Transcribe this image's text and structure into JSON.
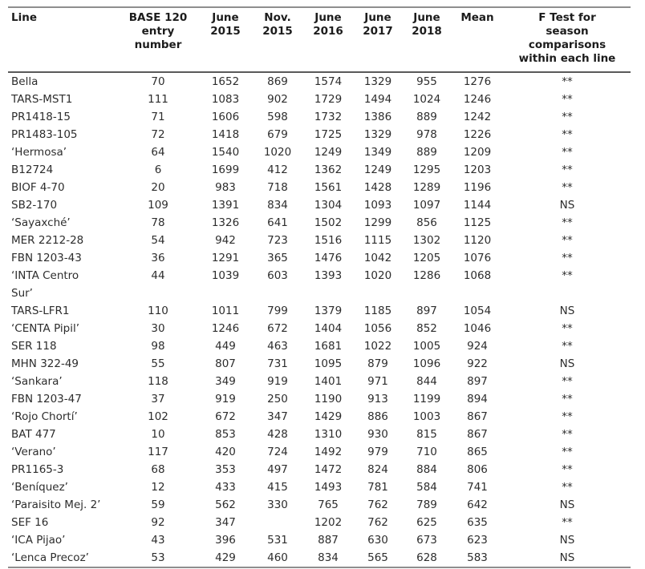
{
  "table": {
    "headers": [
      "Line",
      "BASE 120\nentry\nnumber",
      "June\n2015",
      "Nov.\n2015",
      "June\n2016",
      "June\n2017",
      "June\n2018",
      "Mean",
      "F Test for\nseason\ncomparisons\nwithin each line"
    ],
    "rows": [
      [
        "Bella",
        "70",
        "1652",
        "869",
        "1574",
        "1329",
        "955",
        "1276",
        "**"
      ],
      [
        "TARS-MST1",
        "111",
        "1083",
        "902",
        "1729",
        "1494",
        "1024",
        "1246",
        "**"
      ],
      [
        "PR1418-15",
        "71",
        "1606",
        "598",
        "1732",
        "1386",
        "889",
        "1242",
        "**"
      ],
      [
        "PR1483-105",
        "72",
        "1418",
        "679",
        "1725",
        "1329",
        "978",
        "1226",
        "**"
      ],
      [
        "‘Hermosa’",
        "64",
        "1540",
        "1020",
        "1249",
        "1349",
        "889",
        "1209",
        "**"
      ],
      [
        "B12724",
        "6",
        "1699",
        "412",
        "1362",
        "1249",
        "1295",
        "1203",
        "**"
      ],
      [
        "BIOF 4-70",
        "20",
        "983",
        "718",
        "1561",
        "1428",
        "1289",
        "1196",
        "**"
      ],
      [
        "SB2-170",
        "109",
        "1391",
        "834",
        "1304",
        "1093",
        "1097",
        "1144",
        "NS"
      ],
      [
        "‘Sayaxché’",
        "78",
        "1326",
        "641",
        "1502",
        "1299",
        "856",
        "1125",
        "**"
      ],
      [
        "MER 2212-28",
        "54",
        "942",
        "723",
        "1516",
        "1115",
        "1302",
        "1120",
        "**"
      ],
      [
        "FBN 1203-43",
        "36",
        "1291",
        "365",
        "1476",
        "1042",
        "1205",
        "1076",
        "**"
      ],
      [
        "‘INTA Centro\nSur’",
        "44",
        "1039",
        "603",
        "1393",
        "1020",
        "1286",
        "1068",
        "**"
      ],
      [
        "TARS-LFR1",
        "110",
        "1011",
        "799",
        "1379",
        "1185",
        "897",
        "1054",
        "NS"
      ],
      [
        "‘CENTA Pipil’",
        "30",
        "1246",
        "672",
        "1404",
        "1056",
        "852",
        "1046",
        "**"
      ],
      [
        "SER 118",
        "98",
        "449",
        "463",
        "1681",
        "1022",
        "1005",
        "924",
        "**"
      ],
      [
        "MHN 322-49",
        "55",
        "807",
        "731",
        "1095",
        "879",
        "1096",
        "922",
        "NS"
      ],
      [
        "‘Sankara’",
        "118",
        "349",
        "919",
        "1401",
        "971",
        "844",
        "897",
        "**"
      ],
      [
        "FBN 1203-47",
        "37",
        "919",
        "250",
        "1190",
        "913",
        "1199",
        "894",
        "**"
      ],
      [
        "‘Rojo Chortí’",
        "102",
        "672",
        "347",
        "1429",
        "886",
        "1003",
        "867",
        "**"
      ],
      [
        "BAT 477",
        "10",
        "853",
        "428",
        "1310",
        "930",
        "815",
        "867",
        "**"
      ],
      [
        "‘Verano’",
        "117",
        "420",
        "724",
        "1492",
        "979",
        "710",
        "865",
        "**"
      ],
      [
        "PR1165-3",
        "68",
        "353",
        "497",
        "1472",
        "824",
        "884",
        "806",
        "**"
      ],
      [
        "‘Beníquez’",
        "12",
        "433",
        "415",
        "1493",
        "781",
        "584",
        "741",
        "**"
      ],
      [
        "‘Paraisito Mej. 2’",
        "59",
        "562",
        "330",
        "765",
        "762",
        "789",
        "642",
        "NS"
      ],
      [
        "SEF 16",
        "92",
        "347",
        "",
        "1202",
        "762",
        "625",
        "635",
        "**"
      ],
      [
        "‘ICA Pijao’",
        "43",
        "396",
        "531",
        "887",
        "630",
        "673",
        "623",
        "NS"
      ],
      [
        "‘Lenca Precoz’",
        "53",
        "429",
        "460",
        "834",
        "565",
        "628",
        "583",
        "NS"
      ]
    ]
  },
  "colors": {
    "background": "#ffffff",
    "header_text": "#1c1c1c",
    "body_text": "#2d2d2d",
    "rule_outer": "#8e8e8e",
    "rule_header": "#595959"
  }
}
